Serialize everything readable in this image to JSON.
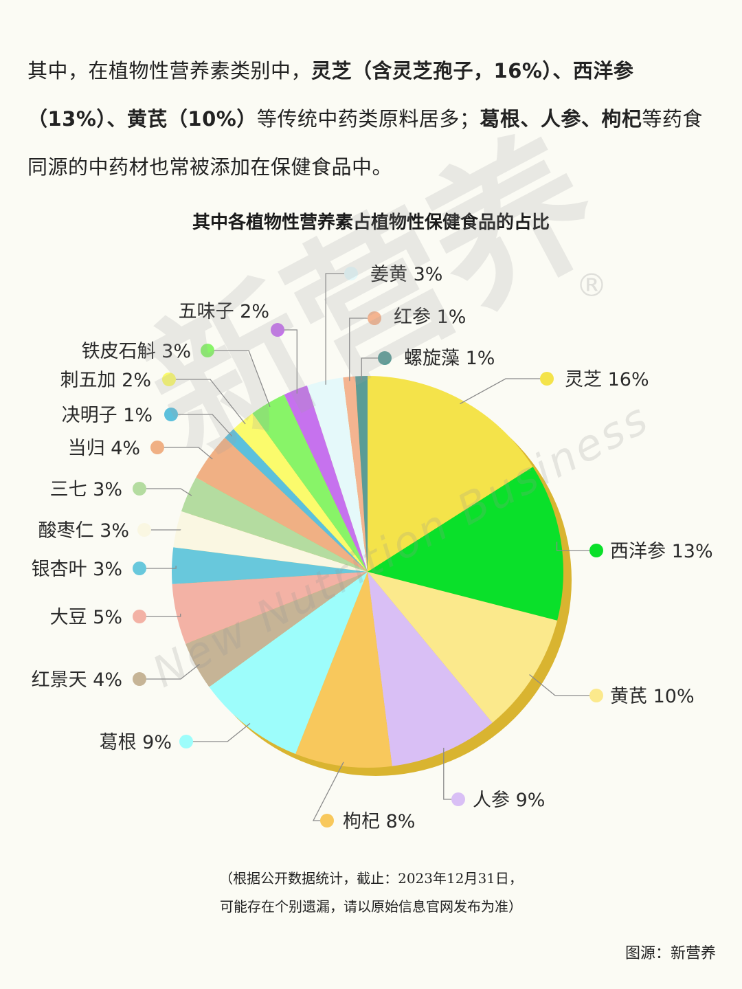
{
  "intro": {
    "p1": "其中，在植物性营养素类别中，",
    "b1": "灵芝（含灵芝孢子，16%）、西洋参（13%）、黄芪（10%）",
    "p2": "等传统中药类原料居多；",
    "b2": "葛根、人参、枸杞",
    "p3": "等药食同源的中药材也常被添加在保健食品中。"
  },
  "watermark": {
    "main": "新营养",
    "sub": "New Nutrition Business",
    "reg": "®"
  },
  "chart_data": {
    "type": "pie",
    "title": "其中各植物性营养素占植物性保健食品的占比",
    "slices": [
      {
        "label": "灵芝",
        "value": 16,
        "color": "#f4e34a"
      },
      {
        "label": "西洋参",
        "value": 13,
        "color": "#0ae02a"
      },
      {
        "label": "黄芪",
        "value": 10,
        "color": "#fbe98c"
      },
      {
        "label": "人参",
        "value": 9,
        "color": "#d9bff5"
      },
      {
        "label": "枸杞",
        "value": 8,
        "color": "#f8c85c"
      },
      {
        "label": "葛根",
        "value": 9,
        "color": "#9dfdfb"
      },
      {
        "label": "红景天",
        "value": 4,
        "color": "#c6b496"
      },
      {
        "label": "大豆",
        "value": 5,
        "color": "#f3b2a5"
      },
      {
        "label": "银杏叶",
        "value": 3,
        "color": "#68c8dc"
      },
      {
        "label": "酸枣仁",
        "value": 3,
        "color": "#faf7e2"
      },
      {
        "label": "三七",
        "value": 3,
        "color": "#b4dca0"
      },
      {
        "label": "当归",
        "value": 4,
        "color": "#f0b084"
      },
      {
        "label": "决明子",
        "value": 1,
        "color": "#5cc0dc"
      },
      {
        "label": "刺五加",
        "value": 2,
        "color": "#fbfb6c"
      },
      {
        "label": "铁皮石斛",
        "value": 3,
        "color": "#88f468"
      },
      {
        "label": "五味子",
        "value": 2,
        "color": "#c672ee"
      },
      {
        "label": "姜黄",
        "value": 3,
        "color": "#e5f9fa"
      },
      {
        "label": "红参",
        "value": 1,
        "color": "#f4b490"
      },
      {
        "label": "螺旋藻",
        "value": 1,
        "color": "#5b9c96"
      }
    ],
    "slice_labels": [
      "灵芝 16%",
      "西洋参 13%",
      "黄芪 10%",
      "人参 9%",
      "枸杞 8%",
      "葛根 9%",
      "红景天 4%",
      "大豆 5%",
      "银杏叶 3%",
      "酸枣仁 3%",
      "三七 3%",
      "当归 4%",
      "决明子 1%",
      "刺五加 2%",
      "铁皮石斛 3%",
      "五味子 2%",
      "姜黄 3%",
      "红参 1%",
      "螺旋藻 1%"
    ],
    "shadow_color": "#d9b430",
    "legend_placement": "callouts around pie"
  },
  "footnote": {
    "line1": "（根据公开数据统计，截止：2023年12月31日，",
    "line2": "可能存在个别遗漏，请以原始信息官网发布为准）"
  },
  "source": "图源：新营养"
}
